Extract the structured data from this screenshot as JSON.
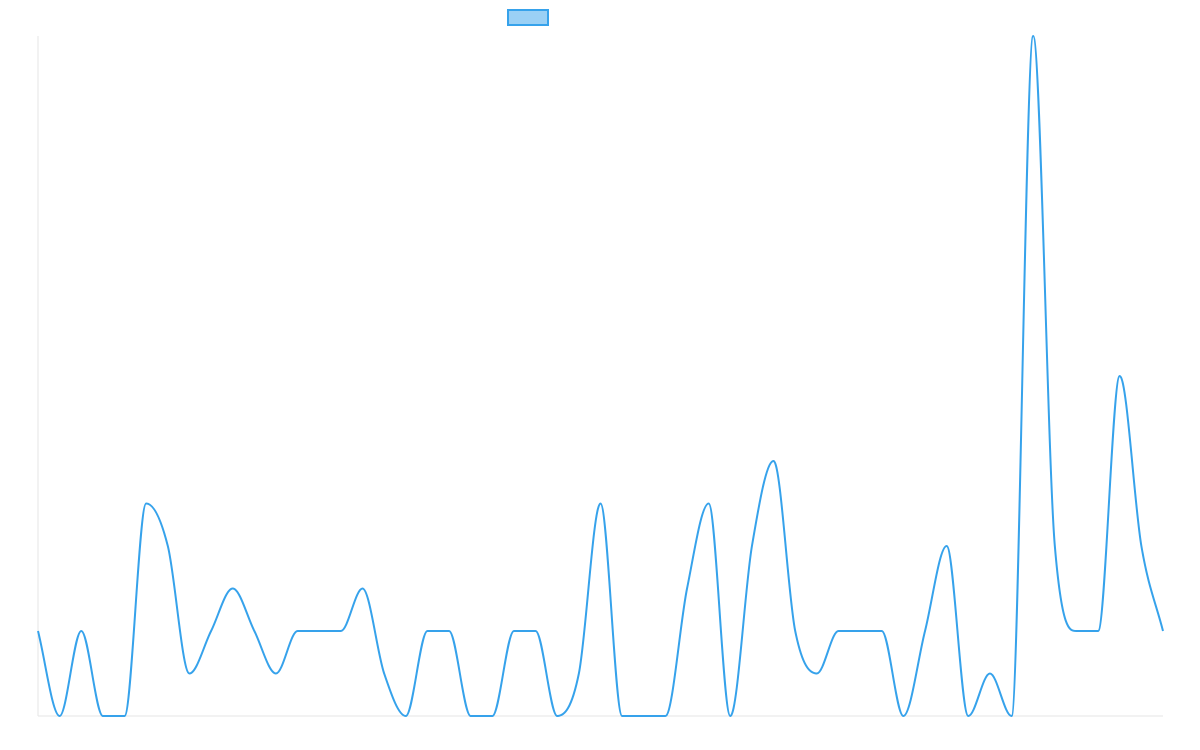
{
  "chart_data": {
    "type": "line",
    "title": "",
    "xlabel": "",
    "ylabel": "",
    "x": [
      0,
      1,
      2,
      3,
      4,
      5,
      6,
      7,
      8,
      9,
      10,
      11,
      12,
      13,
      14,
      15,
      16,
      17,
      18,
      19,
      20,
      21,
      22,
      23,
      24,
      25,
      26,
      27,
      28,
      29,
      30,
      31,
      32,
      33,
      34,
      35,
      36,
      37,
      38,
      39,
      40,
      41,
      42,
      43,
      44,
      45,
      46,
      47,
      48,
      49,
      50,
      51,
      52
    ],
    "series": [
      {
        "name": "",
        "color": "#36a2eb",
        "fill": "#9ad0f5",
        "values": [
          2,
          0,
          2,
          0,
          0,
          5,
          4,
          1,
          2,
          3,
          2,
          1,
          2,
          2,
          2,
          3,
          1,
          0,
          2,
          2,
          0,
          0,
          2,
          2,
          0,
          1,
          5,
          0,
          0,
          0,
          3,
          5,
          0,
          4,
          6,
          2,
          1,
          2,
          2,
          2,
          0,
          2,
          4,
          0,
          1,
          0,
          16,
          4,
          2,
          2,
          8,
          4,
          2
        ]
      }
    ],
    "ylim": [
      0,
      16
    ],
    "legend": {
      "position": "top-center",
      "shape": "box"
    },
    "grid": false
  }
}
